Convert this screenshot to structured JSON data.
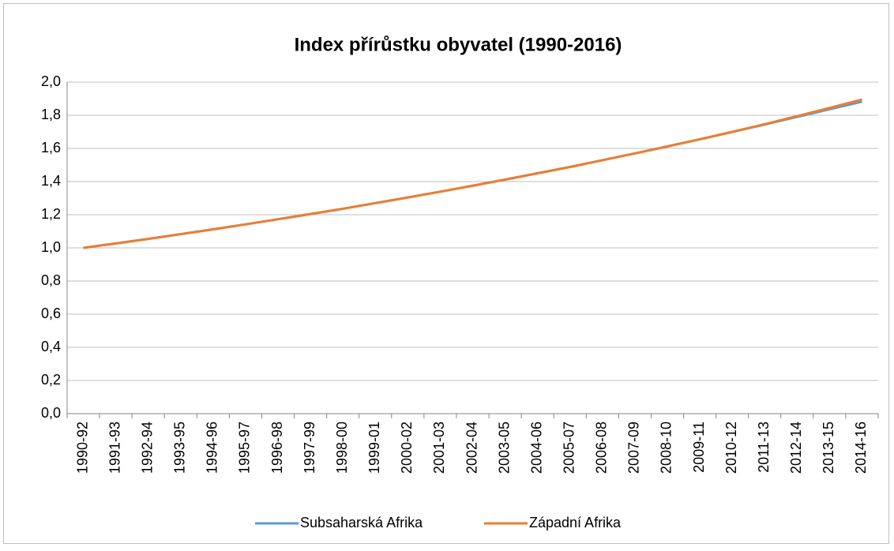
{
  "chart_data": {
    "type": "line",
    "title": "Index přírůstku obyvatel (1990-2016)",
    "categories": [
      "1990-92",
      "1991-93",
      "1992-94",
      "1993-95",
      "1994-96",
      "1995-97",
      "1996-98",
      "1997-99",
      "1998-00",
      "1999-01",
      "2000-02",
      "2001-03",
      "2002-04",
      "2003-05",
      "2004-06",
      "2005-07",
      "2006-08",
      "2007-09",
      "2008-10",
      "2009-11",
      "2010-12",
      "2011-13",
      "2012-14",
      "2013-15",
      "2014-16"
    ],
    "series": [
      {
        "name": "Subsaharská Afrika",
        "color": "#5b9bd5",
        "values": [
          1.0,
          1.027,
          1.054,
          1.083,
          1.112,
          1.142,
          1.173,
          1.204,
          1.236,
          1.27,
          1.304,
          1.339,
          1.375,
          1.412,
          1.45,
          1.488,
          1.529,
          1.57,
          1.612,
          1.655,
          1.699,
          1.744,
          1.79,
          1.836,
          1.882
        ]
      },
      {
        "name": "Západní Afrika",
        "color": "#ed7d31",
        "values": [
          1.0,
          1.027,
          1.054,
          1.083,
          1.112,
          1.142,
          1.173,
          1.204,
          1.236,
          1.27,
          1.304,
          1.339,
          1.375,
          1.412,
          1.45,
          1.488,
          1.529,
          1.57,
          1.612,
          1.655,
          1.7,
          1.746,
          1.795,
          1.844,
          1.895
        ]
      }
    ],
    "ylim": [
      0,
      2
    ],
    "yticks": [
      {
        "value": 0,
        "label": "0,0"
      },
      {
        "value": 0.2,
        "label": "0,2"
      },
      {
        "value": 0.4,
        "label": "0,4"
      },
      {
        "value": 0.6,
        "label": "0,6"
      },
      {
        "value": 0.8,
        "label": "0,8"
      },
      {
        "value": 1,
        "label": "1,0"
      },
      {
        "value": 1.2,
        "label": "1,2"
      },
      {
        "value": 1.4,
        "label": "1,4"
      },
      {
        "value": 1.6,
        "label": "1,6"
      },
      {
        "value": 1.8,
        "label": "1,8"
      },
      {
        "value": 2,
        "label": "2,0"
      }
    ],
    "grid": true,
    "legend": "bottom"
  }
}
